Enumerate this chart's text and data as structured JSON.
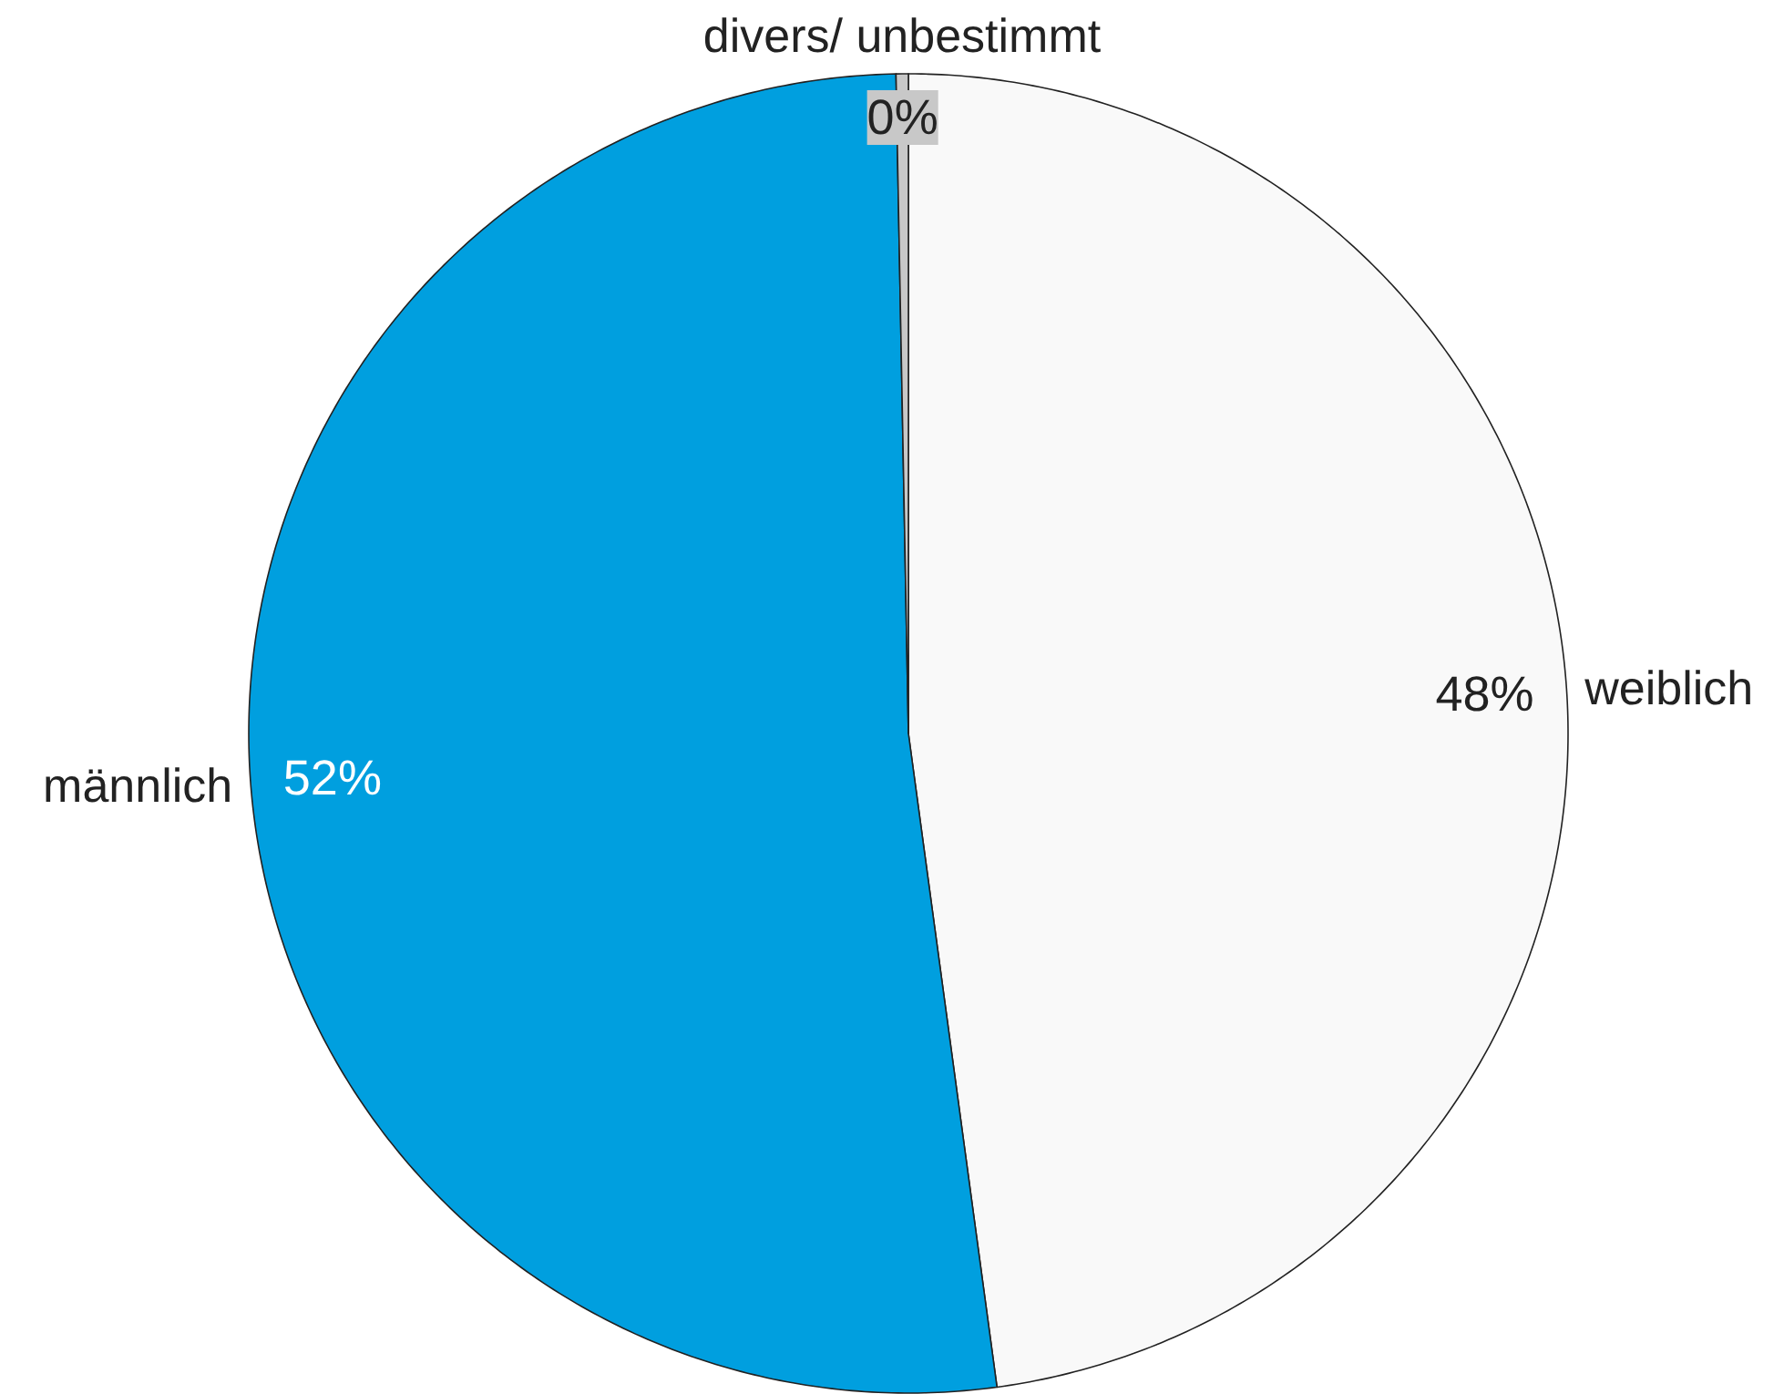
{
  "chart_data": {
    "type": "pie",
    "categories": [
      "weiblich",
      "männlich",
      "divers/ unbestimmt"
    ],
    "values": [
      48,
      52,
      0.3
    ],
    "value_labels": [
      "48%",
      "52%",
      "0%"
    ],
    "colors": [
      "#f9f9f9",
      "#009fdf",
      "#c8c8c8"
    ]
  }
}
